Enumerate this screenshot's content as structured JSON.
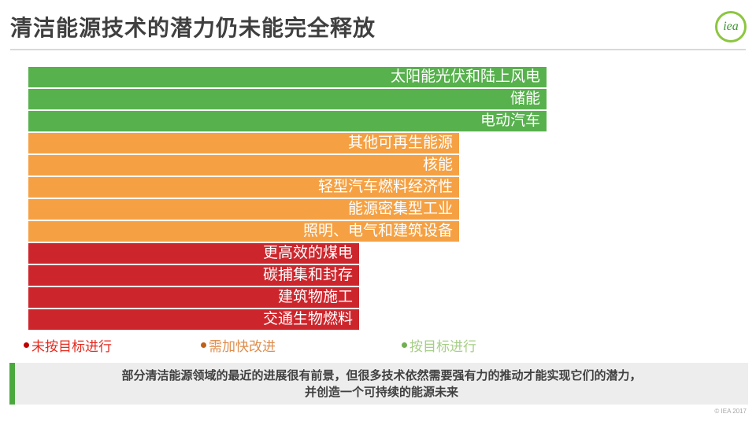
{
  "header": {
    "title": "清洁能源技术的潜力仍未能完全释放",
    "logo": {
      "text": "iea"
    }
  },
  "chart_data": {
    "type": "bar",
    "orientation": "horizontal",
    "title": "清洁能源技术的潜力仍未能完全释放",
    "xlabel": "",
    "ylabel": "",
    "grid": false,
    "legend_position": "bottom",
    "categories": [
      "太阳能光伏和陆上风电",
      "储能",
      "电动汽车",
      "其他可再生能源",
      "核能",
      "轻型汽车燃料经济性",
      "能源密集型工业",
      "照明、电气和建筑设备",
      "更高效的煤电",
      "碳捕集和封存",
      "建筑物施工",
      "交通生物燃料"
    ],
    "values": [
      658,
      658,
      658,
      547,
      547,
      547,
      547,
      547,
      420,
      420,
      420,
      420
    ],
    "value_unit": "px (qualitative chart — bar length encodes status group, no numeric axis shown)",
    "statuses": [
      "on_track",
      "on_track",
      "on_track",
      "improvement_needed",
      "improvement_needed",
      "improvement_needed",
      "improvement_needed",
      "improvement_needed",
      "not_on_track",
      "not_on_track",
      "not_on_track",
      "not_on_track"
    ],
    "colors": {
      "on_track": "#57B14D",
      "improvement_needed": "#F5A143",
      "not_on_track": "#CC262C"
    },
    "legend": [
      {
        "label": "未按目标进行",
        "status": "not_on_track",
        "bullet_color": "#C00000",
        "text_color": "#E62A1E"
      },
      {
        "label": "需加快改进",
        "status": "improvement_needed",
        "bullet_color": "#BF6018",
        "text_color": "#DE8D4C"
      },
      {
        "label": "按目标进行",
        "status": "on_track",
        "bullet_color": "#70B04E",
        "text_color": "#A6CE86"
      }
    ]
  },
  "footer": {
    "note_lines": [
      "部分清洁能源领域的最近的进展很有前景，但很多技术依然需要强有力的推动才能实现它们的潜力，",
      "并创造一个可持续的能源未来"
    ],
    "note_accent_color": "#4BA83F",
    "copyright": "© IEA 2017"
  }
}
